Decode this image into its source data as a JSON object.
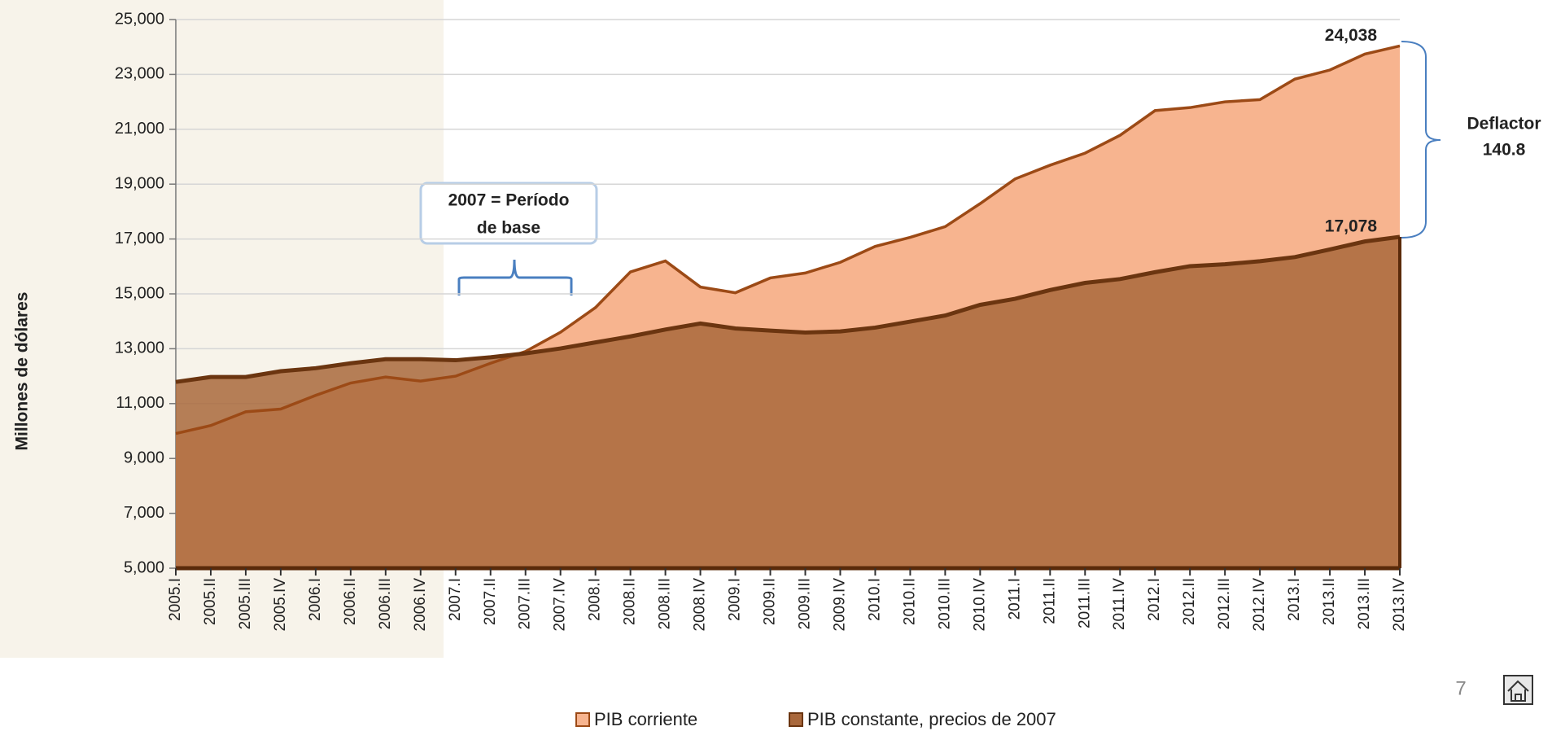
{
  "chart_data": {
    "type": "area",
    "y_label": "Millones de dólares",
    "categories": [
      "2005.I",
      "2005.II",
      "2005.III",
      "2005.IV",
      "2006.I",
      "2006.II",
      "2006.III",
      "2006.IV",
      "2007.I",
      "2007.II",
      "2007.III",
      "2007.IV",
      "2008.I",
      "2008.II",
      "2008.III",
      "2008.IV",
      "2009.I",
      "2009.II",
      "2009.III",
      "2009.IV",
      "2010.I",
      "2010.II",
      "2010.III",
      "2010.IV",
      "2011.I",
      "2011.II",
      "2011.III",
      "2011.IV",
      "2012.I",
      "2012.II",
      "2012.III",
      "2012.IV",
      "2013.I",
      "2013.II",
      "2013.III",
      "2013.IV"
    ],
    "series": [
      {
        "name": "PIB corriente",
        "color": "#f7b48f",
        "line_color": "#9c4a16",
        "values": [
          9910,
          10200,
          10700,
          10800,
          11300,
          11750,
          11970,
          11820,
          12000,
          12470,
          12900,
          13600,
          14500,
          15800,
          16200,
          15250,
          15040,
          15580,
          15760,
          16150,
          16730,
          17060,
          17450,
          18290,
          19190,
          19690,
          20130,
          20780,
          21680,
          21790,
          22000,
          22080,
          22830,
          23160,
          23740,
          24038
        ],
        "value_labels": [
          null,
          null,
          null,
          null,
          null,
          null,
          null,
          null,
          null,
          null,
          null,
          null,
          null,
          null,
          null,
          null,
          null,
          null,
          null,
          null,
          null,
          null,
          null,
          null,
          null,
          null,
          null,
          null,
          null,
          null,
          null,
          null,
          null,
          null,
          null,
          "24,038"
        ]
      },
      {
        "name": "PIB constante, precios de 2007",
        "color": "#a9683c",
        "line_color": "#6b3510",
        "values": [
          11790,
          11970,
          11970,
          12180,
          12290,
          12470,
          12620,
          12620,
          12580,
          12690,
          12830,
          13010,
          13230,
          13450,
          13700,
          13920,
          13740,
          13660,
          13590,
          13630,
          13770,
          13990,
          14210,
          14600,
          14820,
          15140,
          15400,
          15540,
          15790,
          16010,
          16080,
          16190,
          16340,
          16620,
          16910,
          17078
        ],
        "value_labels": [
          null,
          null,
          null,
          null,
          null,
          null,
          null,
          null,
          null,
          null,
          null,
          null,
          null,
          null,
          null,
          null,
          null,
          null,
          null,
          null,
          null,
          null,
          null,
          null,
          null,
          null,
          null,
          null,
          null,
          null,
          null,
          null,
          null,
          null,
          null,
          "17,078"
        ]
      }
    ],
    "ylim": [
      5000,
      25000
    ],
    "yticks": [
      {
        "value": 5000,
        "label": "5,000"
      },
      {
        "value": 7000,
        "label": "7,000"
      },
      {
        "value": 9000,
        "label": "9,000"
      },
      {
        "value": 11000,
        "label": "11,000"
      },
      {
        "value": 13000,
        "label": "13,000"
      },
      {
        "value": 15000,
        "label": "15,000"
      },
      {
        "value": 17000,
        "label": "17,000"
      },
      {
        "value": 19000,
        "label": "19,000"
      },
      {
        "value": 21000,
        "label": "21,000"
      },
      {
        "value": 23000,
        "label": "23,000"
      },
      {
        "value": 25000,
        "label": "25,000"
      }
    ],
    "grid": true,
    "annotations": [
      "Deflactor",
      "140.8",
      "2007 = Período",
      "de base"
    ]
  },
  "page": {
    "number": "7"
  }
}
